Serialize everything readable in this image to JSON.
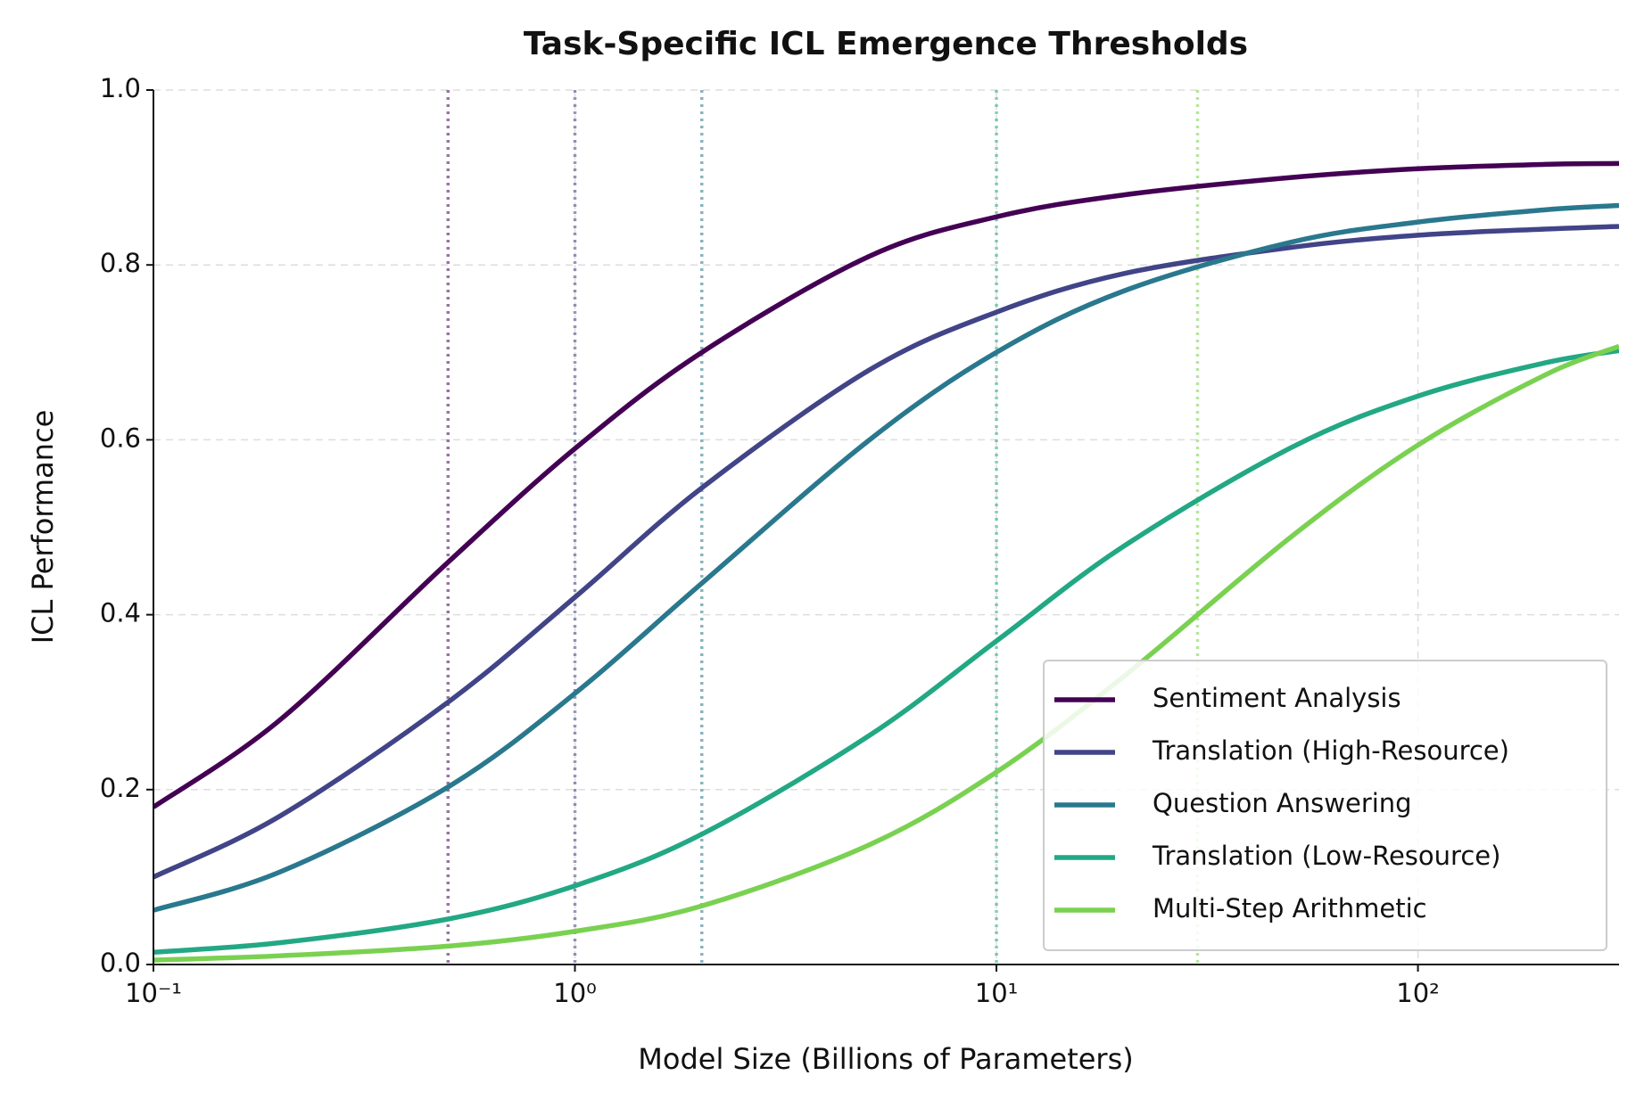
{
  "chart_data": {
    "type": "line",
    "title": "Task-Specific ICL Emergence Thresholds",
    "x_label": "Model Size (Billions of Parameters)",
    "y_label": "ICL Performance",
    "x_scale": "log",
    "x": [
      0.1,
      0.2,
      0.5,
      1,
      2,
      5,
      10,
      20,
      50,
      100,
      200,
      300
    ],
    "series": [
      {
        "name": "Sentiment Analysis",
        "color": "#440154",
        "values": [
          0.18,
          0.28,
          0.46,
          0.59,
          0.7,
          0.81,
          0.855,
          0.88,
          0.9,
          0.91,
          0.915,
          0.916
        ]
      },
      {
        "name": "Translation (High-Resource)",
        "color": "#414487",
        "values": [
          0.1,
          0.17,
          0.3,
          0.42,
          0.545,
          0.68,
          0.746,
          0.79,
          0.82,
          0.834,
          0.841,
          0.844
        ]
      },
      {
        "name": "Question Answering",
        "color": "#2a788e",
        "values": [
          0.062,
          0.106,
          0.203,
          0.31,
          0.436,
          0.6,
          0.7,
          0.77,
          0.826,
          0.849,
          0.863,
          0.868
        ]
      },
      {
        "name": "Translation (Low-Resource)",
        "color": "#22a884",
        "values": [
          0.014,
          0.025,
          0.052,
          0.09,
          0.149,
          0.262,
          0.37,
          0.478,
          0.591,
          0.65,
          0.688,
          0.702
        ]
      },
      {
        "name": "Multi-Step Arithmetic",
        "color": "#7ad151",
        "values": [
          0.005,
          0.01,
          0.021,
          0.038,
          0.067,
          0.137,
          0.22,
          0.329,
          0.489,
          0.594,
          0.674,
          0.707
        ]
      }
    ],
    "thresholds": [
      {
        "x": 0.5,
        "color": "#440154"
      },
      {
        "x": 1,
        "color": "#414487"
      },
      {
        "x": 2,
        "color": "#2a788e"
      },
      {
        "x": 10,
        "color": "#22a884"
      },
      {
        "x": 30,
        "color": "#7ad151"
      }
    ],
    "xlim": [
      0.1,
      300
    ],
    "ylim": [
      0,
      1
    ],
    "xticks": [
      {
        "value": 0.1,
        "label": "10⁻¹"
      },
      {
        "value": 1,
        "label": "10⁰"
      },
      {
        "value": 10,
        "label": "10¹"
      },
      {
        "value": 100,
        "label": "10²"
      }
    ],
    "yticks": [
      {
        "value": 0,
        "label": "0.0"
      },
      0.2,
      0.4,
      0.6,
      0.8,
      {
        "value": 1,
        "label": "1.0"
      }
    ],
    "grid": true,
    "legend": "lower right"
  }
}
